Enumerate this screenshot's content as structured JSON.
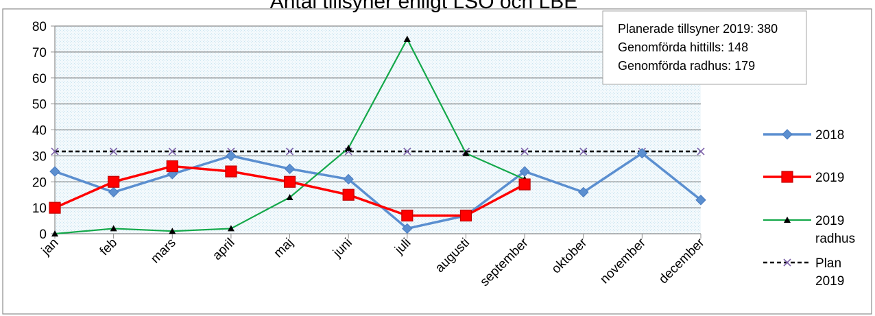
{
  "chart_data": {
    "type": "line",
    "title": "Antal tillsyner enligt LSO och LBE",
    "categories": [
      "jan",
      "feb",
      "mars",
      "april",
      "maj",
      "juni",
      "juli",
      "augusti",
      "september",
      "oktober",
      "november",
      "december"
    ],
    "ylim": [
      0,
      80
    ],
    "yticks": [
      0,
      10,
      20,
      30,
      40,
      50,
      60,
      70,
      80
    ],
    "grid": true,
    "legend_position": "right",
    "series": [
      {
        "name": "2018",
        "color": "#5b8fd0",
        "marker": "diamond",
        "line_style": "solid",
        "values": [
          24,
          16,
          23,
          30,
          25,
          21,
          2,
          7,
          24,
          16,
          31,
          13
        ]
      },
      {
        "name": "2019",
        "color": "#ff0000",
        "marker": "square",
        "line_style": "solid",
        "values": [
          10,
          20,
          26,
          24,
          20,
          15,
          7,
          7,
          19,
          null,
          null,
          null
        ]
      },
      {
        "name": "2019 radhus",
        "color": "#14a84a",
        "marker": "triangle",
        "line_style": "solid",
        "values": [
          0,
          2,
          1,
          2,
          14,
          33,
          75,
          31,
          21,
          null,
          null,
          null
        ]
      },
      {
        "name": "Plan 2019",
        "color": "#000000",
        "marker": "x",
        "line_style": "dashed",
        "values": [
          31.7,
          31.7,
          31.7,
          31.7,
          31.7,
          31.7,
          31.7,
          31.7,
          31.7,
          31.7,
          31.7,
          31.7
        ]
      }
    ],
    "annotation_lines": [
      "Planerade tillsyner 2019: 380",
      "Genomförda hittills: 148",
      "Genomförda radhus: 179"
    ]
  }
}
